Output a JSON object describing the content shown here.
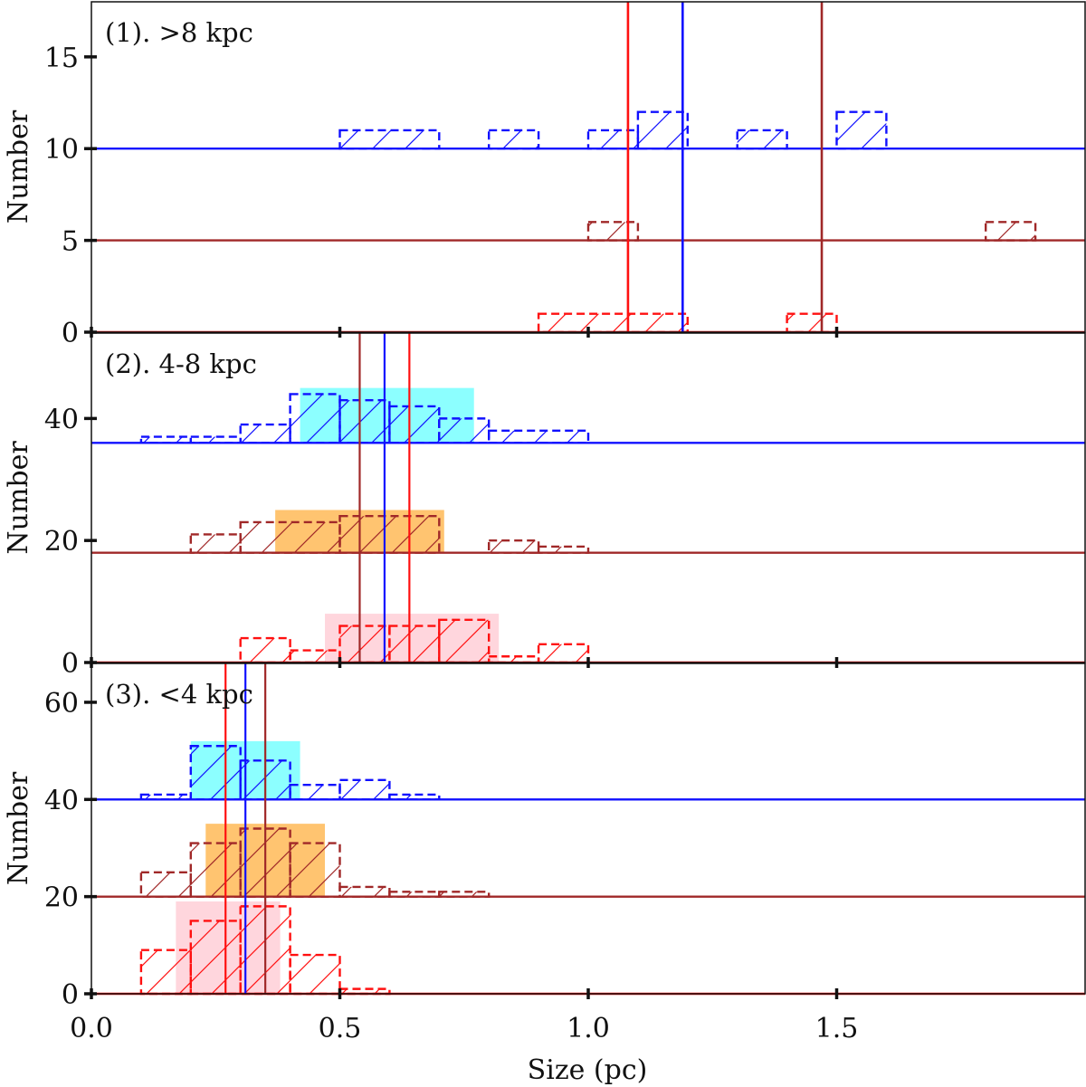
{
  "chart_data": {
    "type": "histogram",
    "xlabel": "Size (pc)",
    "xlim": [
      0.0,
      2.0
    ],
    "xticks": [
      0.0,
      0.5,
      1.0,
      1.5
    ],
    "xtick_labels": [
      "0.0",
      "0.5",
      "1.0",
      "1.5"
    ],
    "colors": {
      "blue": "#1010ff",
      "brown": "#a02828",
      "red": "#ff1010",
      "cyan": "#66ffff",
      "orange": "#ffb040",
      "pink": "#ffc8d2"
    },
    "panels": [
      {
        "label": "(1).  >8 kpc",
        "ylabel": "Number",
        "ylim": [
          0,
          18
        ],
        "yticks": [
          0,
          5,
          10,
          15
        ],
        "ytick_labels": [
          "0",
          "5",
          "10",
          "15"
        ],
        "series": [
          {
            "name": "blue",
            "color": "blue",
            "baseline": 10,
            "median": 1.19,
            "bins": [
              [
                0.5,
                0.7,
                1
              ],
              [
                0.8,
                0.9,
                1
              ],
              [
                1.0,
                1.1,
                1
              ],
              [
                1.1,
                1.2,
                2
              ],
              [
                1.3,
                1.4,
                1
              ],
              [
                1.5,
                1.6,
                2
              ]
            ]
          },
          {
            "name": "brown",
            "color": "brown",
            "baseline": 5,
            "median": 1.47,
            "bins": [
              [
                1.0,
                1.1,
                1
              ],
              [
                1.8,
                1.9,
                1
              ]
            ]
          },
          {
            "name": "red",
            "color": "red",
            "baseline": 0,
            "median": 1.08,
            "bins": [
              [
                0.9,
                1.2,
                1
              ],
              [
                1.4,
                1.5,
                1
              ]
            ]
          }
        ]
      },
      {
        "label": "(2).  4-8 kpc",
        "ylabel": "Number",
        "ylim": [
          0,
          54
        ],
        "yticks": [
          0,
          20,
          40
        ],
        "ytick_labels": [
          "0",
          "20",
          "40"
        ],
        "series": [
          {
            "name": "blue",
            "color": "blue",
            "baseline": 36,
            "median": 0.59,
            "band": [
              0.42,
              0.77
            ],
            "band_color": "cyan",
            "bins": [
              [
                0.1,
                0.2,
                1
              ],
              [
                0.2,
                0.3,
                1
              ],
              [
                0.3,
                0.4,
                3
              ],
              [
                0.4,
                0.5,
                8
              ],
              [
                0.5,
                0.6,
                7
              ],
              [
                0.6,
                0.7,
                6
              ],
              [
                0.7,
                0.8,
                4
              ],
              [
                0.8,
                1.0,
                2
              ]
            ]
          },
          {
            "name": "brown",
            "color": "brown",
            "baseline": 18,
            "median": 0.54,
            "band": [
              0.37,
              0.71
            ],
            "band_color": "orange",
            "bins": [
              [
                0.2,
                0.3,
                3
              ],
              [
                0.3,
                0.5,
                5
              ],
              [
                0.5,
                0.7,
                6
              ],
              [
                0.8,
                0.9,
                2
              ],
              [
                0.9,
                1.0,
                1
              ]
            ]
          },
          {
            "name": "red",
            "color": "red",
            "baseline": 0,
            "median": 0.64,
            "band": [
              0.47,
              0.82
            ],
            "band_color": "pink",
            "bins": [
              [
                0.3,
                0.4,
                4
              ],
              [
                0.4,
                0.5,
                2
              ],
              [
                0.5,
                0.6,
                6
              ],
              [
                0.6,
                0.7,
                6
              ],
              [
                0.7,
                0.8,
                7
              ],
              [
                0.8,
                0.9,
                1
              ],
              [
                0.9,
                1.0,
                3
              ]
            ]
          }
        ]
      },
      {
        "label": "(3).  <4 kpc",
        "ylabel": "Number",
        "ylim": [
          0,
          68
        ],
        "yticks": [
          0,
          20,
          40,
          60
        ],
        "ytick_labels": [
          "0",
          "20",
          "40",
          "60"
        ],
        "series": [
          {
            "name": "blue",
            "color": "blue",
            "baseline": 40,
            "median": 0.31,
            "band": [
              0.2,
              0.42
            ],
            "band_color": "cyan",
            "bins": [
              [
                0.1,
                0.2,
                1
              ],
              [
                0.2,
                0.3,
                11
              ],
              [
                0.3,
                0.4,
                8
              ],
              [
                0.4,
                0.5,
                3
              ],
              [
                0.5,
                0.6,
                4
              ],
              [
                0.6,
                0.7,
                1
              ]
            ]
          },
          {
            "name": "brown",
            "color": "brown",
            "baseline": 20,
            "median": 0.35,
            "band": [
              0.23,
              0.47
            ],
            "band_color": "orange",
            "bins": [
              [
                0.1,
                0.2,
                5
              ],
              [
                0.2,
                0.3,
                11
              ],
              [
                0.3,
                0.4,
                14
              ],
              [
                0.4,
                0.5,
                11
              ],
              [
                0.5,
                0.6,
                2
              ],
              [
                0.6,
                0.7,
                1
              ],
              [
                0.7,
                0.8,
                1
              ]
            ]
          },
          {
            "name": "red",
            "color": "red",
            "baseline": 0,
            "median": 0.27,
            "band": [
              0.17,
              0.38
            ],
            "band_color": "pink",
            "bins": [
              [
                0.1,
                0.2,
                9
              ],
              [
                0.2,
                0.3,
                15
              ],
              [
                0.3,
                0.4,
                18
              ],
              [
                0.4,
                0.5,
                8
              ],
              [
                0.5,
                0.6,
                1
              ]
            ]
          }
        ]
      }
    ]
  }
}
